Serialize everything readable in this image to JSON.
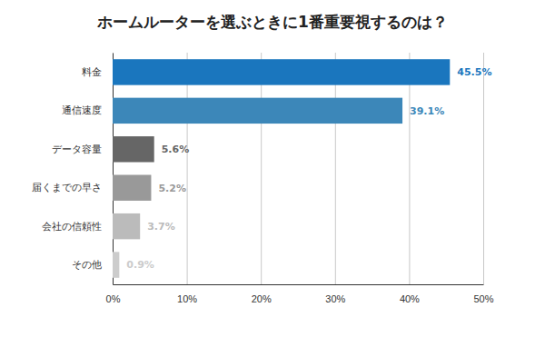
{
  "chart_data": {
    "type": "bar",
    "orientation": "horizontal",
    "title": "ホームルーターを選ぶときに1番重要視するのは？",
    "categories": [
      "料金",
      "通信速度",
      "データ容量",
      "届くまでの早さ",
      "会社の信頼性",
      "その他"
    ],
    "values": [
      45.5,
      39.1,
      5.6,
      5.2,
      3.7,
      0.9
    ],
    "value_labels": [
      "45.5%",
      "39.1%",
      "5.6%",
      "5.2%",
      "3.7%",
      "0.9%"
    ],
    "colors": [
      "#1a76be",
      "#3c87b9",
      "#666666",
      "#999999",
      "#bbbbbb",
      "#cccccc"
    ],
    "xlim": [
      0,
      50
    ],
    "xticks": [
      {
        "value": 0,
        "label": "0%"
      },
      {
        "value": 10,
        "label": "10%"
      },
      {
        "value": 20,
        "label": "20%"
      },
      {
        "value": 30,
        "label": "30%"
      },
      {
        "value": 40,
        "label": "40%"
      },
      {
        "value": 50,
        "label": "50%"
      }
    ],
    "grid": true,
    "data_labels": true
  }
}
